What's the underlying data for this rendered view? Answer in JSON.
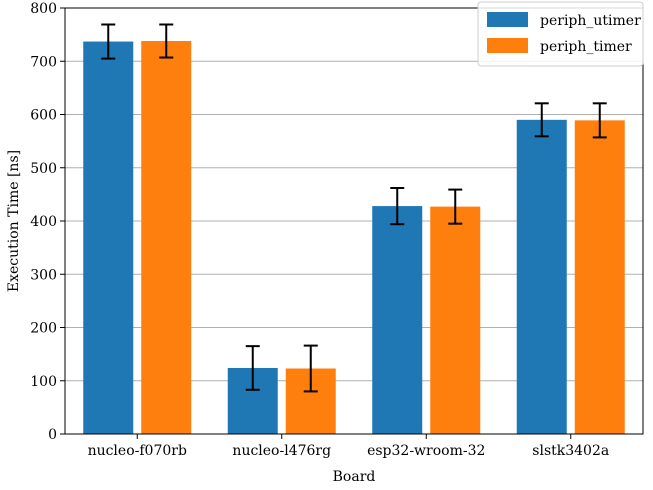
{
  "chart_data": {
    "type": "bar",
    "title": "",
    "xlabel": "Board",
    "ylabel": "Execution Time [ns]",
    "categories": [
      "nucleo-f070rb",
      "nucleo-l476rg",
      "esp32-wroom-32",
      "slstk3402a"
    ],
    "series": [
      {
        "name": "periph_utimer",
        "color": "#1f77b4",
        "values": [
          737,
          124,
          428,
          590
        ],
        "errors": [
          32,
          41,
          34,
          31
        ]
      },
      {
        "name": "periph_timer",
        "color": "#ff7f0e",
        "values": [
          738,
          123,
          427,
          589
        ],
        "errors": [
          31,
          43,
          32,
          32
        ]
      }
    ],
    "ylim": [
      0,
      800
    ],
    "yticks": [
      0,
      100,
      200,
      300,
      400,
      500,
      600,
      700,
      800
    ],
    "grid": "horizontal",
    "legend": "top-right"
  }
}
